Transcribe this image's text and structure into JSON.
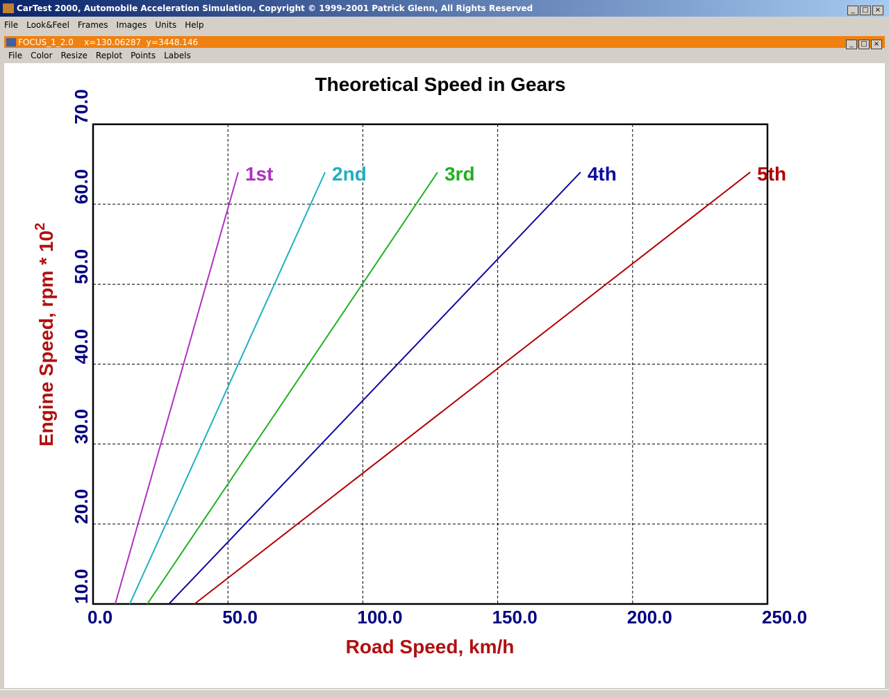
{
  "window": {
    "title": "CarTest 2000, Automobile Acceleration Simulation, Copyright © 1999-2001 Patrick Glenn, All Rights Reserved",
    "menu": [
      "File",
      "Look&Feel",
      "Frames",
      "Images",
      "Units",
      "Help"
    ]
  },
  "frame": {
    "title": "FOCUS_1_2.0    x=130.06287  y=3448.146",
    "menu": [
      "File",
      "Color",
      "Resize",
      "Replot",
      "Points",
      "Labels"
    ]
  },
  "chart_data": {
    "type": "line",
    "title": "Theoretical Speed in Gears",
    "xlabel": "Road Speed, km/h",
    "ylabel": "Engine Speed, rpm * 10",
    "ylabel_superscript": "2",
    "xlim": [
      0,
      250
    ],
    "ylim": [
      10,
      70
    ],
    "xticks": [
      {
        "value": 0,
        "label": "0.0"
      },
      {
        "value": 50,
        "label": "50.0"
      },
      {
        "value": 100,
        "label": "100.0"
      },
      {
        "value": 150,
        "label": "150.0"
      },
      {
        "value": 200,
        "label": "200.0"
      },
      {
        "value": 250,
        "label": "250.0"
      }
    ],
    "yticks": [
      {
        "value": 10,
        "label": "10.0"
      },
      {
        "value": 20,
        "label": "20.0"
      },
      {
        "value": 30,
        "label": "30.0"
      },
      {
        "value": 40,
        "label": "40.0"
      },
      {
        "value": 50,
        "label": "50.0"
      },
      {
        "value": 60,
        "label": "60.0"
      },
      {
        "value": 70,
        "label": "70.0"
      }
    ],
    "grid": true,
    "series": [
      {
        "name": "1st",
        "color": "#b030c0",
        "x": [
          8.2,
          53.8
        ],
        "values": [
          10,
          64
        ]
      },
      {
        "name": "2nd",
        "color": "#20b0c0",
        "x": [
          13.6,
          86.0
        ],
        "values": [
          10,
          64
        ]
      },
      {
        "name": "3rd",
        "color": "#20b020",
        "x": [
          20.1,
          127.7
        ],
        "values": [
          10,
          64
        ]
      },
      {
        "name": "4th",
        "color": "#0a0aa0",
        "x": [
          28.1,
          180.7
        ],
        "values": [
          10,
          64
        ]
      },
      {
        "name": "5th",
        "color": "#b00000",
        "x": [
          37.6,
          243.6
        ],
        "values": [
          10,
          64
        ]
      }
    ]
  }
}
